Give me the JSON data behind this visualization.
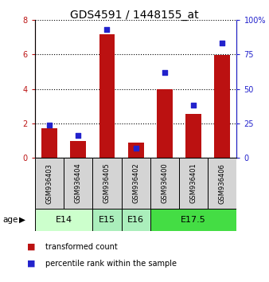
{
  "title": "GDS4591 / 1448155_at",
  "samples": [
    "GSM936403",
    "GSM936404",
    "GSM936405",
    "GSM936402",
    "GSM936400",
    "GSM936401",
    "GSM936406"
  ],
  "red_values": [
    1.7,
    1.0,
    7.15,
    0.9,
    4.0,
    2.55,
    5.95
  ],
  "blue_values": [
    24,
    16,
    93,
    7,
    62,
    38,
    83
  ],
  "ylim_left": [
    0,
    8
  ],
  "ylim_right": [
    0,
    100
  ],
  "yticks_left": [
    0,
    2,
    4,
    6,
    8
  ],
  "yticks_right": [
    0,
    25,
    50,
    75,
    100
  ],
  "age_groups": [
    {
      "label": "E14",
      "start": 0,
      "end": 2,
      "color": "#ccffcc"
    },
    {
      "label": "E15",
      "start": 2,
      "end": 3,
      "color": "#aaeebb"
    },
    {
      "label": "E16",
      "start": 3,
      "end": 4,
      "color": "#aaeebb"
    },
    {
      "label": "E17.5",
      "start": 4,
      "end": 7,
      "color": "#44dd44"
    }
  ],
  "bar_color": "#bb1111",
  "dot_color": "#2222cc",
  "bar_width": 0.55,
  "title_fontsize": 10,
  "tick_fontsize": 7,
  "sample_fontsize": 6,
  "age_fontsize": 8,
  "legend_items": [
    {
      "label": "transformed count",
      "color": "#bb1111"
    },
    {
      "label": "percentile rank within the sample",
      "color": "#2222cc"
    }
  ]
}
